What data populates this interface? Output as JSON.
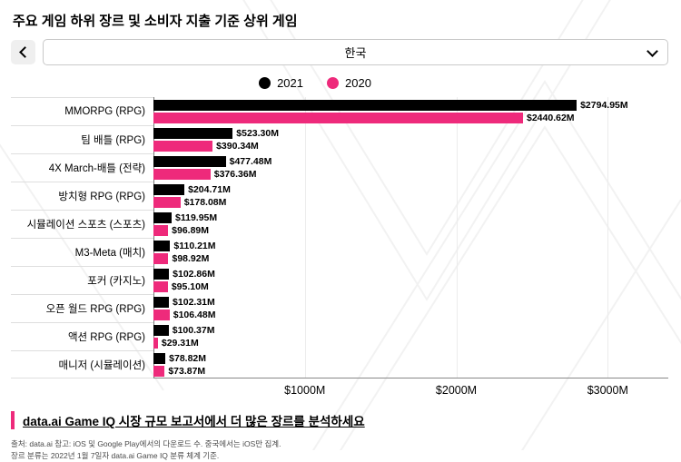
{
  "page": {
    "title": "주요 게임 하위 장르 및 소비자 지출 기준 상위 게임",
    "region_selector": {
      "value": "한국",
      "back_icon": "chevron-left",
      "dropdown_icon": "chevron-down"
    },
    "footer_link": "data.ai Game IQ 시장 규모 보고서에서 더 많은 장르를 분석하세요",
    "source_line1": "출처: data.ai 참고: iOS 및 Google Play에서의 다운로드 수. 중국에서는 iOS만 집계.",
    "source_line2": "장르 분류는 2022년 1월 7일자 data.ai Game IQ 분류 체계 기준.",
    "accent_color": "#ee2a7b"
  },
  "chart_data": {
    "type": "bar",
    "orientation": "horizontal",
    "title": "주요 게임 하위 장르 및 소비자 지출 기준 상위 게임",
    "xlabel": "",
    "ylabel": "",
    "xlim": [
      0,
      3400
    ],
    "x_ticks": [
      "$1000M",
      "$2000M",
      "$3000M"
    ],
    "x_tick_values": [
      1000,
      2000,
      3000
    ],
    "grid": "vertical-light",
    "legend_position": "top-center",
    "categories": [
      "MMORPG (RPG)",
      "팀 배틀 (RPG)",
      "4X March-배틀 (전략)",
      "방치형 RPG (RPG)",
      "시뮬레이션 스포츠 (스포츠)",
      "M3-Meta (매치)",
      "포커 (카지노)",
      "오픈 월드 RPG (RPG)",
      "액션 RPG (RPG)",
      "매니저 (시뮬레이션)"
    ],
    "series": [
      {
        "name": "2021",
        "color": "#000000",
        "values": [
          2794.95,
          523.3,
          477.48,
          204.71,
          119.95,
          110.21,
          102.86,
          102.31,
          100.37,
          78.82
        ],
        "value_labels": [
          "$2794.95M",
          "$523.30M",
          "$477.48M",
          "$204.71M",
          "$119.95M",
          "$110.21M",
          "$102.86M",
          "$102.31M",
          "$100.37M",
          "$78.82M"
        ]
      },
      {
        "name": "2020",
        "color": "#ee2a7b",
        "values": [
          2440.62,
          390.34,
          376.36,
          178.08,
          96.89,
          98.92,
          95.1,
          106.48,
          29.31,
          73.87
        ],
        "value_labels": [
          "$2440.62M",
          "$390.34M",
          "$376.36M",
          "$178.08M",
          "$96.89M",
          "$98.92M",
          "$95.10M",
          "$106.48M",
          "$29.31M",
          "$73.87M"
        ]
      }
    ]
  }
}
